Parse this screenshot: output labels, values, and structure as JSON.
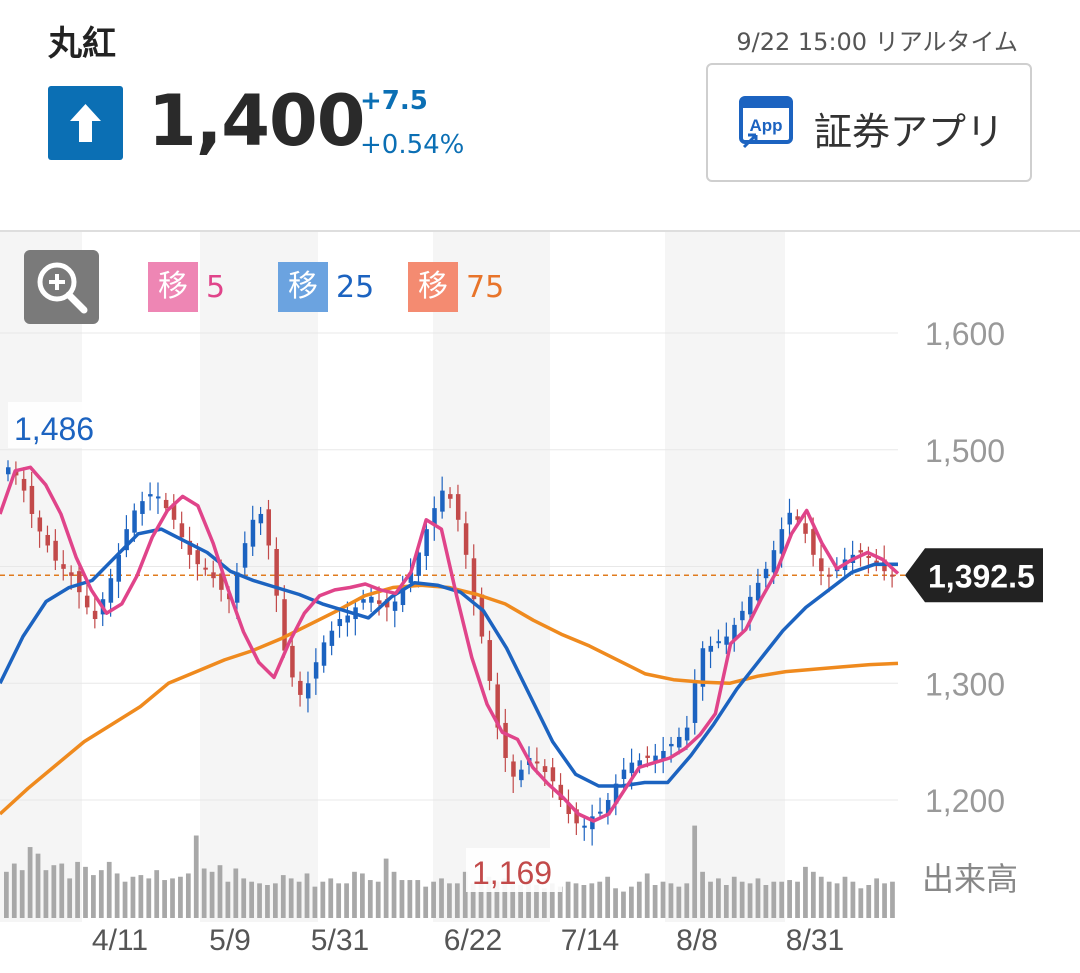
{
  "header": {
    "name": "丸紅",
    "timestamp": "9/22 15:00 リアルタイム",
    "price": "1,400",
    "change": "+7.5",
    "change_pct": "+0.54%",
    "direction_icon": "up-arrow-icon",
    "accent": "#0b6fb4"
  },
  "app_button": {
    "label": "証券アプリ",
    "icon": "app-icon",
    "icon_text": "App"
  },
  "zoom_icon": "zoom-in-icon",
  "legend": [
    {
      "badge": "移",
      "value": "5",
      "color": "#e0448a",
      "badge_color": "#ee86b4"
    },
    {
      "badge": "移",
      "value": "25",
      "color": "#1c63c0",
      "badge_color": "#6ba3e0"
    },
    {
      "badge": "移",
      "value": "75",
      "color": "#e8742a",
      "badge_color": "#f48b71"
    }
  ],
  "chart_data": {
    "type": "candlestick",
    "y_ticks": [
      "1,600",
      "1,500",
      "1,300",
      "1,200"
    ],
    "x_ticks": [
      "4/11",
      "5/9",
      "5/31",
      "6/22",
      "7/14",
      "8/8",
      "8/31"
    ],
    "ylim": [
      1150,
      1640
    ],
    "volume_label": "出来高",
    "high_label": "1,486",
    "low_label": "1,169",
    "current_label": "1,392.5",
    "current_value": 1392.5,
    "up_color": "#1c63c0",
    "down_color": "#c24a4a",
    "candles_close": [
      1485,
      1478,
      1465,
      1445,
      1430,
      1418,
      1405,
      1398,
      1392,
      1378,
      1365,
      1355,
      1372,
      1390,
      1410,
      1432,
      1448,
      1456,
      1462,
      1460,
      1450,
      1440,
      1425,
      1410,
      1402,
      1398,
      1390,
      1380,
      1372,
      1395,
      1420,
      1440,
      1445,
      1418,
      1375,
      1328,
      1305,
      1290,
      1300,
      1318,
      1335,
      1345,
      1355,
      1358,
      1365,
      1372,
      1374,
      1368,
      1365,
      1370,
      1382,
      1395,
      1412,
      1432,
      1450,
      1465,
      1458,
      1440,
      1410,
      1372,
      1340,
      1302,
      1262,
      1236,
      1220,
      1226,
      1236,
      1232,
      1224,
      1216,
      1200,
      1188,
      1180,
      1178,
      1186,
      1190,
      1200,
      1214,
      1226,
      1232,
      1234,
      1236,
      1238,
      1242,
      1248,
      1254,
      1262,
      1300,
      1330,
      1332,
      1336,
      1340,
      1350,
      1362,
      1374,
      1386,
      1398,
      1414,
      1432,
      1446,
      1440,
      1428,
      1410,
      1396,
      1392,
      1400,
      1406,
      1410,
      1412,
      1408,
      1402,
      1396,
      1392
    ],
    "ma5": [
      1445,
      1482,
      1485,
      1470,
      1445,
      1408,
      1380,
      1360,
      1368,
      1392,
      1425,
      1448,
      1460,
      1452,
      1420,
      1380,
      1344,
      1318,
      1305,
      1335,
      1360,
      1375,
      1380,
      1382,
      1385,
      1380,
      1377,
      1395,
      1440,
      1432,
      1375,
      1322,
      1282,
      1258,
      1252,
      1228,
      1214,
      1202,
      1188,
      1182,
      1188,
      1208,
      1228,
      1232,
      1236,
      1244,
      1256,
      1274,
      1334,
      1346,
      1372,
      1395,
      1428,
      1448,
      1420,
      1398,
      1406,
      1412,
      1406,
      1394
    ],
    "ma25": [
      1300,
      1340,
      1370,
      1382,
      1388,
      1408,
      1428,
      1432,
      1422,
      1412,
      1396,
      1388,
      1382,
      1376,
      1368,
      1362,
      1356,
      1374,
      1386,
      1384,
      1378,
      1362,
      1330,
      1290,
      1250,
      1222,
      1212,
      1212,
      1215,
      1215,
      1238,
      1265,
      1295,
      1320,
      1345,
      1365,
      1380,
      1395,
      1402,
      1402
    ],
    "ma75": [
      1188,
      1210,
      1230,
      1250,
      1265,
      1280,
      1300,
      1310,
      1320,
      1328,
      1338,
      1350,
      1362,
      1375,
      1382,
      1384,
      1382,
      1376,
      1368,
      1354,
      1342,
      1332,
      1320,
      1308,
      1303,
      1301,
      1300,
      1306,
      1310,
      1312,
      1314,
      1316,
      1317
    ],
    "volume": [
      28,
      33,
      29,
      43,
      39,
      29,
      32,
      33,
      24,
      34,
      31,
      26,
      29,
      34,
      27,
      22,
      25,
      26,
      24,
      29,
      23,
      24,
      25,
      27,
      50,
      30,
      28,
      32,
      22,
      30,
      24,
      22,
      21,
      20,
      21,
      26,
      24,
      22,
      27,
      19,
      22,
      24,
      21,
      21,
      28,
      27,
      23,
      22,
      36,
      28,
      23,
      23,
      23,
      19,
      22,
      24,
      21,
      21,
      28,
      21,
      23,
      25,
      22,
      24,
      21,
      20,
      24,
      20,
      18,
      21,
      19,
      22,
      21,
      20,
      21,
      22,
      25,
      18,
      16,
      19,
      22,
      27,
      20,
      22,
      21,
      19,
      21,
      56,
      28,
      22,
      24,
      20,
      25,
      22,
      21,
      24,
      20,
      22,
      22,
      23,
      22,
      31,
      28,
      25,
      22,
      21,
      25,
      22,
      18,
      20,
      24,
      21,
      22
    ]
  }
}
